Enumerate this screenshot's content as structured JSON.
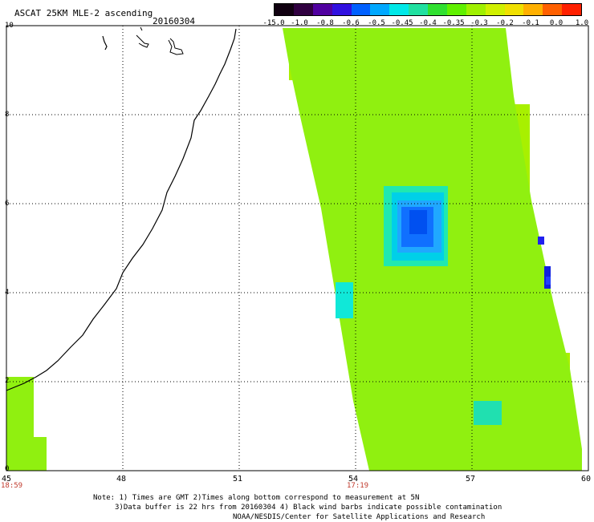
{
  "title": "ASCAT 25KM MLE-2 ascending",
  "date": "20160304",
  "colorbar": {
    "labels": [
      "-15.0",
      "-1.0",
      "-0.8",
      "-0.6",
      "-0.5",
      "-0.45",
      "-0.4",
      "-0.35",
      "-0.3",
      "-0.2",
      "-0.1",
      "0.0",
      "1.0"
    ],
    "colors": [
      "#100010",
      "#300040",
      "#5000a0",
      "#3010e0",
      "#0060ff",
      "#00a8ff",
      "#00e8e8",
      "#20e0a0",
      "#30e030",
      "#60f000",
      "#a0f000",
      "#d0f000",
      "#f0e000",
      "#ffb000",
      "#ff6000",
      "#ff2000"
    ]
  },
  "axes": {
    "x_ticks": [
      "45",
      "48",
      "51",
      "54",
      "57",
      "60"
    ],
    "y_ticks": [
      "0",
      "2",
      "4",
      "6",
      "8",
      "10"
    ],
    "x_range": [
      45,
      60
    ],
    "y_range": [
      0,
      10
    ]
  },
  "times": {
    "left": "18:59",
    "middle": "17:19"
  },
  "notes": {
    "line1": "Note: 1) Times are GMT 2)Times along bottom correspond to measurement at 5N",
    "line2": "3)Data buffer is 22 hrs from 20160304 4) Black wind barbs indicate possible contamination",
    "line3": "NOAA/NESDIS/Center for Satellite Applications and Research"
  }
}
